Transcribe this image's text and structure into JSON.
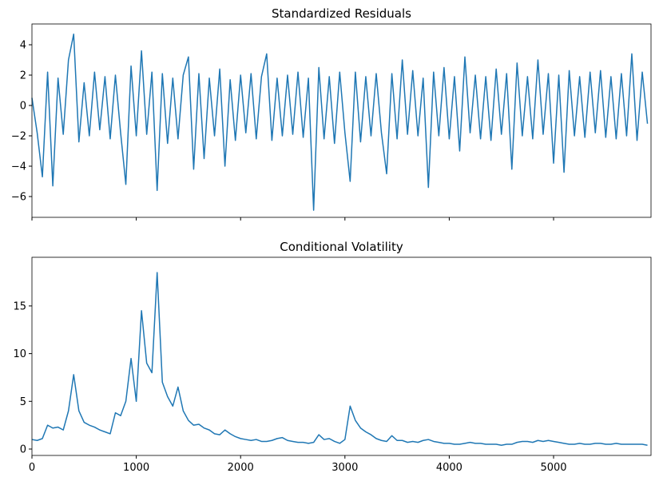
{
  "chart_data": [
    {
      "type": "line",
      "title": "Standardized Residuals",
      "xtick_labels": false,
      "x": [
        0,
        50,
        100,
        150,
        200,
        250,
        300,
        350,
        400,
        450,
        500,
        550,
        600,
        650,
        700,
        750,
        800,
        850,
        900,
        950,
        1000,
        1050,
        1100,
        1150,
        1200,
        1250,
        1300,
        1350,
        1400,
        1450,
        1500,
        1550,
        1600,
        1650,
        1700,
        1750,
        1800,
        1850,
        1900,
        1950,
        2000,
        2050,
        2100,
        2150,
        2200,
        2250,
        2300,
        2350,
        2400,
        2450,
        2500,
        2550,
        2600,
        2650,
        2700,
        2750,
        2800,
        2850,
        2900,
        2950,
        3000,
        3050,
        3100,
        3150,
        3200,
        3250,
        3300,
        3350,
        3400,
        3450,
        3500,
        3550,
        3600,
        3650,
        3700,
        3750,
        3800,
        3850,
        3900,
        3950,
        4000,
        4050,
        4100,
        4150,
        4200,
        4250,
        4300,
        4350,
        4400,
        4450,
        4500,
        4550,
        4600,
        4650,
        4700,
        4750,
        4800,
        4850,
        4900,
        4950,
        5000,
        5050,
        5100,
        5150,
        5200,
        5250,
        5300,
        5350,
        5400,
        5450,
        5500,
        5550,
        5600,
        5650,
        5700,
        5750,
        5800,
        5850,
        5900
      ],
      "series": [
        {
          "color": "#1f77b4",
          "values": [
            0.5,
            -1.8,
            -4.7,
            2.2,
            -5.3,
            1.8,
            -1.9,
            3.0,
            4.7,
            -2.4,
            1.5,
            -2.0,
            2.2,
            -1.6,
            1.9,
            -2.2,
            2.0,
            -1.8,
            -5.2,
            2.6,
            -2.0,
            3.6,
            -1.9,
            2.2,
            -5.6,
            2.1,
            -2.5,
            1.8,
            -2.2,
            2.0,
            3.2,
            -4.2,
            2.1,
            -3.5,
            1.8,
            -2.0,
            2.4,
            -4.0,
            1.7,
            -2.3,
            2.0,
            -1.8,
            2.1,
            -2.2,
            1.9,
            3.4,
            -2.3,
            1.8,
            -2.0,
            2.0,
            -1.9,
            2.2,
            -2.1,
            1.8,
            -6.9,
            2.5,
            -2.2,
            1.9,
            -2.5,
            2.2,
            -1.8,
            -5.0,
            2.2,
            -2.4,
            1.9,
            -2.0,
            2.1,
            -1.8,
            -4.5,
            2.1,
            -2.2,
            3.0,
            -1.9,
            2.3,
            -2.0,
            1.8,
            -5.4,
            2.2,
            -2.0,
            2.5,
            -2.2,
            1.9,
            -3.0,
            3.2,
            -1.8,
            2.0,
            -2.2,
            1.9,
            -2.3,
            2.4,
            -1.9,
            2.1,
            -4.2,
            2.8,
            -2.0,
            1.9,
            -2.2,
            3.0,
            -1.9,
            2.1,
            -3.8,
            2.0,
            -4.4,
            2.3,
            -2.0,
            1.9,
            -2.1,
            2.2,
            -1.8,
            2.3,
            -2.1,
            1.9,
            -2.2,
            2.1,
            -2.0,
            3.4,
            -2.3,
            2.2,
            -1.2
          ]
        }
      ],
      "xlim": [
        0,
        5934
      ],
      "xticks": [
        0,
        1000,
        2000,
        3000,
        4000,
        5000
      ],
      "ylim": [
        -7.37,
        5.37
      ],
      "yticks": [
        {
          "value": -6,
          "label": "−6"
        },
        {
          "value": -4,
          "label": "−4"
        },
        {
          "value": -2,
          "label": "−2"
        },
        0,
        2,
        4
      ]
    },
    {
      "type": "line",
      "title": "Conditional Volatility",
      "xtick_labels": true,
      "x": [
        0,
        50,
        100,
        150,
        200,
        250,
        300,
        350,
        400,
        450,
        500,
        550,
        600,
        650,
        700,
        750,
        800,
        850,
        900,
        950,
        1000,
        1050,
        1100,
        1150,
        1200,
        1250,
        1300,
        1350,
        1400,
        1450,
        1500,
        1550,
        1600,
        1650,
        1700,
        1750,
        1800,
        1850,
        1900,
        1950,
        2000,
        2050,
        2100,
        2150,
        2200,
        2250,
        2300,
        2350,
        2400,
        2450,
        2500,
        2550,
        2600,
        2650,
        2700,
        2750,
        2800,
        2850,
        2900,
        2950,
        3000,
        3050,
        3100,
        3150,
        3200,
        3250,
        3300,
        3350,
        3400,
        3450,
        3500,
        3550,
        3600,
        3650,
        3700,
        3750,
        3800,
        3850,
        3900,
        3950,
        4000,
        4050,
        4100,
        4150,
        4200,
        4250,
        4300,
        4350,
        4400,
        4450,
        4500,
        4550,
        4600,
        4650,
        4700,
        4750,
        4800,
        4850,
        4900,
        4950,
        5000,
        5050,
        5100,
        5150,
        5200,
        5250,
        5300,
        5350,
        5400,
        5450,
        5500,
        5550,
        5600,
        5650,
        5700,
        5750,
        5800,
        5850,
        5900
      ],
      "series": [
        {
          "color": "#1f77b4",
          "values": [
            1.0,
            0.9,
            1.1,
            2.5,
            2.2,
            2.3,
            2.0,
            4.0,
            7.8,
            4.0,
            2.8,
            2.5,
            2.3,
            2.0,
            1.8,
            1.6,
            3.8,
            3.5,
            5.0,
            9.5,
            5.0,
            14.5,
            9.0,
            8.0,
            18.5,
            7.0,
            5.5,
            4.5,
            6.5,
            4.0,
            3.0,
            2.5,
            2.6,
            2.2,
            2.0,
            1.6,
            1.5,
            2.0,
            1.6,
            1.3,
            1.1,
            1.0,
            0.9,
            1.0,
            0.8,
            0.8,
            0.9,
            1.1,
            1.2,
            0.9,
            0.8,
            0.7,
            0.7,
            0.6,
            0.7,
            1.5,
            1.0,
            1.1,
            0.8,
            0.6,
            1.0,
            4.5,
            3.0,
            2.2,
            1.8,
            1.5,
            1.1,
            0.9,
            0.8,
            1.4,
            0.9,
            0.9,
            0.7,
            0.8,
            0.7,
            0.9,
            1.0,
            0.8,
            0.7,
            0.6,
            0.6,
            0.5,
            0.5,
            0.6,
            0.7,
            0.6,
            0.6,
            0.5,
            0.5,
            0.5,
            0.4,
            0.5,
            0.5,
            0.7,
            0.8,
            0.8,
            0.7,
            0.9,
            0.8,
            0.9,
            0.8,
            0.7,
            0.6,
            0.5,
            0.5,
            0.6,
            0.5,
            0.5,
            0.6,
            0.6,
            0.5,
            0.5,
            0.6,
            0.5,
            0.5,
            0.5,
            0.5,
            0.5,
            0.4
          ]
        }
      ],
      "xlim": [
        0,
        5934
      ],
      "xticks": [
        0,
        1000,
        2000,
        3000,
        4000,
        5000
      ],
      "ylim": [
        -0.67,
        20.1
      ],
      "yticks": [
        0,
        5,
        10,
        15
      ]
    }
  ]
}
